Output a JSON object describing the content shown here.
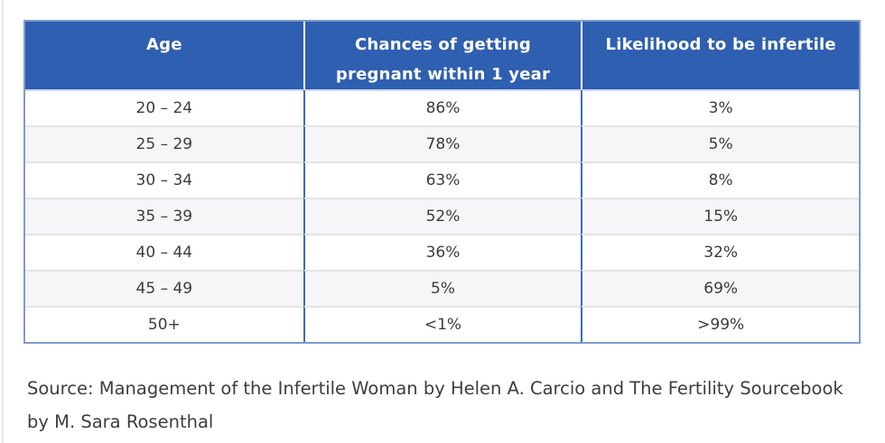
{
  "chart_data": {
    "type": "table",
    "columns": [
      "Age",
      "Chances of getting pregnant within 1 year",
      "Likelihood to be infertile"
    ],
    "rows": [
      [
        "20 – 24",
        "86%",
        "3%"
      ],
      [
        "25 – 29",
        "78%",
        "5%"
      ],
      [
        "30 – 34",
        "63%",
        "8%"
      ],
      [
        "35 – 39",
        "52%",
        "15%"
      ],
      [
        "40 – 44",
        "36%",
        "32%"
      ],
      [
        "45 – 49",
        "5%",
        "69%"
      ],
      [
        "50+",
        "<1%",
        ">99%"
      ]
    ],
    "source": "Source: Management of the Infertile Woman by Helen A. Carcio and The Fertility Sourcebook by M. Sara Rosenthal"
  },
  "header": {
    "col1": "Age",
    "col2_line1": "Chances of getting",
    "col2_line2": "pregnant within 1 year",
    "col3": "Likelihood to be infertile"
  },
  "source_text": "Source: Management of the Infertile Woman by Helen A. Carcio and The Fertility Sourcebook by M. Sara Rosenthal",
  "colors": {
    "header_bg": "#2f5fb0",
    "header_text": "#ffffff",
    "column_divider": "#3e6bb7",
    "header_divider": "#ffffff",
    "under_header_line": "#c9d8f2",
    "row_divider": "#e4e4e4",
    "alt_row_bg": "#f6f6f8",
    "outer_border": "#7f9bce",
    "body_text": "#3c3c3c",
    "source_text_color": "#3d3d3d"
  }
}
